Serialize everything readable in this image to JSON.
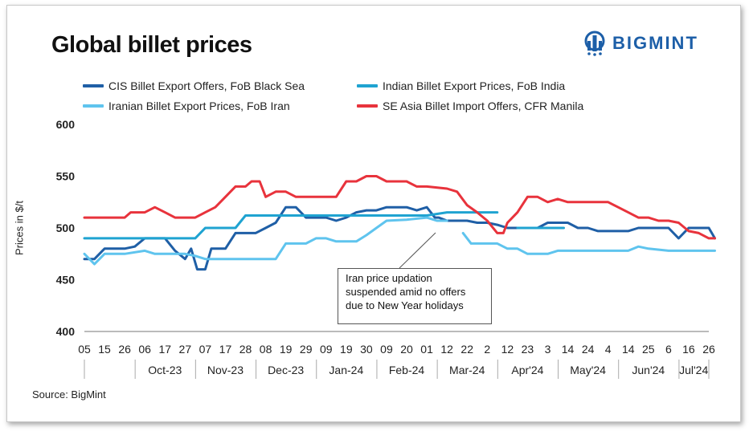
{
  "title": "Global billet prices",
  "brand": {
    "name": "BIGMINT",
    "color": "#1d5fa8"
  },
  "source": "Source: BigMint",
  "callout": [
    "Iran price updation",
    "suspended  amid no offers",
    "due to New Year holidays"
  ],
  "chart_data": {
    "type": "line",
    "ylabel": "Prices in $/t",
    "ylim": [
      400,
      600
    ],
    "yticks": [
      400,
      450,
      500,
      550,
      600
    ],
    "x_tick_labels": [
      "05",
      "15",
      "26",
      "06",
      "17",
      "27",
      "07",
      "17",
      "28",
      "08",
      "19",
      "29",
      "09",
      "19",
      "30",
      "09",
      "20",
      "01",
      "12",
      "22",
      "2",
      "12",
      "23",
      "3",
      "14",
      "24",
      "4",
      "14",
      "25",
      "6",
      "16",
      "26"
    ],
    "months": [
      "Oct-23",
      "Nov-23",
      "Dec-23",
      "Jan-24",
      "Feb-24",
      "Mar-24",
      "Apr'24",
      "May'24",
      "Jun'24",
      "Jul'24"
    ],
    "series": [
      {
        "name": "CIS Billet Export Offers, FoB Black Sea",
        "color": "#1f5fa6",
        "points": [
          [
            0,
            470
          ],
          [
            0.5,
            470
          ],
          [
            1,
            480
          ],
          [
            2,
            480
          ],
          [
            2.5,
            482
          ],
          [
            3,
            490
          ],
          [
            4,
            490
          ],
          [
            4.5,
            478
          ],
          [
            5,
            470
          ],
          [
            5.3,
            480
          ],
          [
            5.6,
            460
          ],
          [
            6,
            460
          ],
          [
            6.3,
            480
          ],
          [
            7,
            480
          ],
          [
            7.5,
            495
          ],
          [
            8,
            495
          ],
          [
            8.5,
            495
          ],
          [
            9,
            500
          ],
          [
            9.5,
            505
          ],
          [
            10,
            520
          ],
          [
            10.5,
            520
          ],
          [
            11,
            510
          ],
          [
            12,
            510
          ],
          [
            12.5,
            507
          ],
          [
            13,
            510
          ],
          [
            13.5,
            515
          ],
          [
            14,
            517
          ],
          [
            14.5,
            517
          ],
          [
            15,
            520
          ],
          [
            16,
            520
          ],
          [
            16.5,
            517
          ],
          [
            17,
            520
          ],
          [
            17.4,
            510
          ],
          [
            17.6,
            510
          ],
          [
            18,
            507
          ],
          [
            19,
            507
          ],
          [
            19.5,
            505
          ],
          [
            20,
            505
          ],
          [
            20.5,
            503
          ],
          [
            21,
            500
          ],
          [
            22,
            500
          ],
          [
            22.5,
            500
          ],
          [
            23,
            505
          ],
          [
            24,
            505
          ],
          [
            24.5,
            500
          ],
          [
            25,
            500
          ],
          [
            25.5,
            497
          ],
          [
            26,
            497
          ],
          [
            27,
            497
          ],
          [
            27.5,
            500
          ],
          [
            28,
            500
          ],
          [
            29,
            500
          ],
          [
            29.5,
            490
          ],
          [
            30,
            500
          ],
          [
            31,
            500
          ],
          [
            31.3,
            490
          ]
        ]
      },
      {
        "name": "Indian Billet Export Prices, FoB India",
        "color": "#1fa3d1",
        "points": [
          [
            0,
            490
          ],
          [
            1,
            490
          ],
          [
            2,
            490
          ],
          [
            3,
            490
          ],
          [
            4,
            490
          ],
          [
            5,
            490
          ],
          [
            5.5,
            490
          ],
          [
            6,
            500
          ],
          [
            7,
            500
          ],
          [
            7.5,
            500
          ],
          [
            8,
            512
          ],
          [
            9,
            512
          ],
          [
            10,
            512
          ],
          [
            11,
            512
          ],
          [
            12,
            512
          ],
          [
            13,
            512
          ],
          [
            14,
            512
          ],
          [
            15,
            512
          ],
          [
            16,
            512
          ],
          [
            17,
            512
          ],
          [
            18,
            515
          ],
          [
            19,
            515
          ],
          [
            20,
            515
          ],
          [
            20.5,
            515
          ]
        ]
      },
      {
        "name": "Indian Billet Export Prices, FoB India (Apr-May)",
        "legend": false,
        "color": "#1fa3d1",
        "points": [
          [
            21.5,
            500
          ],
          [
            22,
            500
          ],
          [
            23,
            500
          ],
          [
            23.8,
            500
          ]
        ]
      },
      {
        "name": "Iranian Billet Export Prices, FoB Iran",
        "color": "#5fc4ee",
        "points": [
          [
            0,
            475
          ],
          [
            0.5,
            465
          ],
          [
            1,
            475
          ],
          [
            2,
            475
          ],
          [
            3,
            478
          ],
          [
            3.5,
            475
          ],
          [
            4,
            475
          ],
          [
            5,
            475
          ],
          [
            5.5,
            473
          ],
          [
            6,
            470
          ],
          [
            7,
            470
          ],
          [
            8,
            470
          ],
          [
            9,
            470
          ],
          [
            9.5,
            470
          ],
          [
            10,
            485
          ],
          [
            11,
            485
          ],
          [
            11.5,
            490
          ],
          [
            12,
            490
          ],
          [
            12.5,
            487
          ],
          [
            13,
            487
          ],
          [
            13.5,
            487
          ],
          [
            14,
            493
          ],
          [
            14.5,
            500
          ],
          [
            15,
            507
          ],
          [
            16,
            508
          ],
          [
            17,
            510
          ],
          [
            17.5,
            507
          ],
          [
            18,
            507
          ]
        ]
      },
      {
        "name": "Iranian Billet Export Prices, FoB Iran (after gap)",
        "legend": false,
        "color": "#5fc4ee",
        "points": [
          [
            18.8,
            495
          ],
          [
            19.2,
            485
          ],
          [
            20,
            485
          ],
          [
            20.5,
            485
          ],
          [
            21,
            480
          ],
          [
            21.5,
            480
          ],
          [
            22,
            475
          ],
          [
            23,
            475
          ],
          [
            23.5,
            478
          ],
          [
            24,
            478
          ],
          [
            25,
            478
          ],
          [
            26,
            478
          ],
          [
            27,
            478
          ],
          [
            27.5,
            482
          ],
          [
            28,
            480
          ],
          [
            29,
            478
          ],
          [
            30,
            478
          ],
          [
            31,
            478
          ],
          [
            31.3,
            478
          ]
        ]
      },
      {
        "name": "SE Asia Billet Import Offers, CFR Manila",
        "color": "#e8333c",
        "points": [
          [
            0,
            510
          ],
          [
            1,
            510
          ],
          [
            2,
            510
          ],
          [
            2.3,
            515
          ],
          [
            3,
            515
          ],
          [
            3.5,
            520
          ],
          [
            4,
            515
          ],
          [
            4.5,
            510
          ],
          [
            5,
            510
          ],
          [
            5.5,
            510
          ],
          [
            6,
            515
          ],
          [
            6.5,
            520
          ],
          [
            7,
            530
          ],
          [
            7.5,
            540
          ],
          [
            8,
            540
          ],
          [
            8.3,
            545
          ],
          [
            8.7,
            545
          ],
          [
            9,
            530
          ],
          [
            9.5,
            535
          ],
          [
            10,
            535
          ],
          [
            10.5,
            530
          ],
          [
            11,
            530
          ],
          [
            12,
            530
          ],
          [
            12.5,
            530
          ],
          [
            13,
            545
          ],
          [
            13.5,
            545
          ],
          [
            14,
            550
          ],
          [
            14.5,
            550
          ],
          [
            15,
            545
          ],
          [
            15.5,
            545
          ],
          [
            16,
            545
          ],
          [
            16.5,
            540
          ],
          [
            17,
            540
          ],
          [
            18,
            538
          ],
          [
            18.5,
            535
          ],
          [
            19,
            522
          ],
          [
            19.5,
            515
          ],
          [
            20,
            507
          ],
          [
            20.5,
            495
          ],
          [
            20.8,
            495
          ],
          [
            21,
            505
          ],
          [
            21.5,
            515
          ],
          [
            22,
            530
          ],
          [
            22.5,
            530
          ],
          [
            23,
            525
          ],
          [
            23.5,
            528
          ],
          [
            24,
            525
          ],
          [
            25,
            525
          ],
          [
            26,
            525
          ],
          [
            26.5,
            520
          ],
          [
            27,
            515
          ],
          [
            27.5,
            510
          ],
          [
            28,
            510
          ],
          [
            28.5,
            507
          ],
          [
            29,
            507
          ],
          [
            29.5,
            505
          ],
          [
            30,
            497
          ],
          [
            30.5,
            495
          ],
          [
            31,
            490
          ],
          [
            31.3,
            490
          ]
        ]
      }
    ]
  }
}
